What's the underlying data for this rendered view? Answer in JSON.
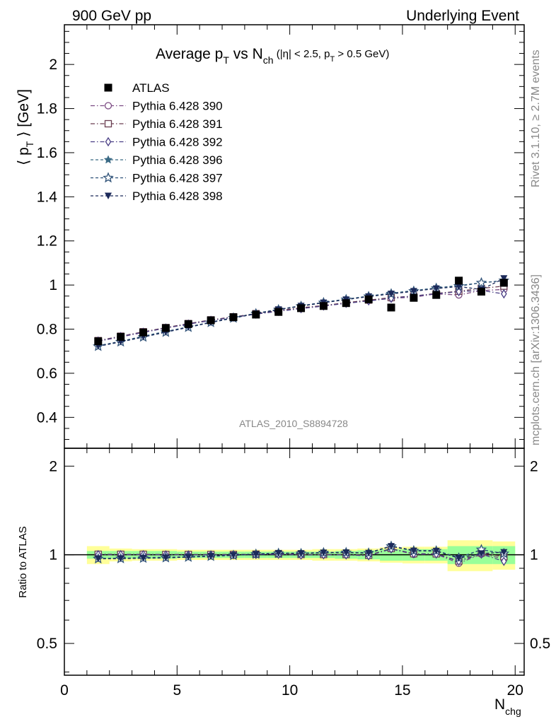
{
  "header": {
    "left": "900 GeV pp",
    "right": "Underlying Event"
  },
  "side_text": {
    "rivet": "Rivet 3.1.10, ≥ 2.7M events",
    "mcplots": "mcplots.cern.ch [arXiv:1306.3436]"
  },
  "chart_data": {
    "type": "scatter",
    "title": {
      "prefix": "Average p",
      "sub1": "T",
      "mid": " vs N",
      "sub2": "ch",
      "cut_a": " (|η| < 2.5, p",
      "cut_sub": "T",
      "cut_b": " > 0.5 GeV)"
    },
    "analysis_label": "ATLAS_2010_S8894728",
    "xlabel": {
      "main": "N",
      "sub": "chg"
    },
    "ylabel": {
      "left": "⟨ p",
      "sub": "T",
      "right": " ⟩ [GeV]"
    },
    "ratio_ylabel": "Ratio to ATLAS",
    "xlim": [
      0,
      20.4
    ],
    "ylim": [
      0.26,
      2.18
    ],
    "ratio_ylim": [
      0.39,
      2.3
    ],
    "x_ticks": [
      "0",
      "5",
      "10",
      "15",
      "20"
    ],
    "y_ticks": [
      "0.4",
      "0.6",
      "0.8",
      "1",
      "1.2",
      "1.4",
      "1.6",
      "1.8",
      "2"
    ],
    "ratio_ticks": [
      "0.5",
      "1",
      "2"
    ],
    "x": [
      1.5,
      2.5,
      3.5,
      4.5,
      5.5,
      6.5,
      7.5,
      8.5,
      9.5,
      10.5,
      11.5,
      12.5,
      13.5,
      14.5,
      15.5,
      16.5,
      17.5,
      18.5,
      19.5
    ],
    "data": {
      "name": "ATLAS",
      "values": [
        0.745,
        0.765,
        0.785,
        0.805,
        0.823,
        0.84,
        0.854,
        0.866,
        0.878,
        0.895,
        0.905,
        0.918,
        0.935,
        0.898,
        0.942,
        0.955,
        1.02,
        0.97,
        1.01
      ],
      "band_inner": [
        0.03,
        0.03,
        0.03,
        0.03,
        0.025,
        0.025,
        0.025,
        0.025,
        0.025,
        0.025,
        0.025,
        0.03,
        0.035,
        0.045,
        0.045,
        0.045,
        0.07,
        0.07,
        0.07
      ],
      "band_outer": [
        0.07,
        0.05,
        0.045,
        0.045,
        0.04,
        0.04,
        0.04,
        0.04,
        0.04,
        0.04,
        0.045,
        0.045,
        0.05,
        0.06,
        0.065,
        0.065,
        0.12,
        0.12,
        0.11
      ]
    },
    "series": [
      {
        "name": "Pythia 6.428 390",
        "color": "#7b4a82",
        "marker": "circle-open",
        "dash": "dashdot",
        "values": [
          0.745,
          0.765,
          0.785,
          0.805,
          0.823,
          0.84,
          0.854,
          0.868,
          0.883,
          0.895,
          0.905,
          0.918,
          0.93,
          0.94,
          0.945,
          0.96,
          0.955,
          0.975,
          0.98
        ]
      },
      {
        "name": "Pythia 6.428 391",
        "color": "#6a3d50",
        "marker": "square-open",
        "dash": "dashdot",
        "values": [
          0.748,
          0.768,
          0.788,
          0.807,
          0.825,
          0.842,
          0.856,
          0.87,
          0.884,
          0.897,
          0.907,
          0.92,
          0.932,
          0.943,
          0.95,
          0.962,
          0.972,
          0.985,
          0.995
        ]
      },
      {
        "name": "Pythia 6.428 392",
        "color": "#4a3f85",
        "marker": "diamond-open",
        "dash": "dashdot",
        "values": [
          0.746,
          0.766,
          0.786,
          0.805,
          0.823,
          0.84,
          0.854,
          0.868,
          0.881,
          0.893,
          0.905,
          0.917,
          0.928,
          0.94,
          0.95,
          0.96,
          0.97,
          0.975,
          0.96
        ]
      },
      {
        "name": "Pythia 6.428 396",
        "color": "#3a6a85",
        "marker": "star-filled",
        "dash": "dashed",
        "values": [
          0.725,
          0.745,
          0.768,
          0.79,
          0.81,
          0.832,
          0.852,
          0.872,
          0.89,
          0.906,
          0.922,
          0.936,
          0.95,
          0.963,
          0.975,
          0.987,
          0.998,
          1.01,
          1.02
        ]
      },
      {
        "name": "Pythia 6.428 397",
        "color": "#2f5278",
        "marker": "star-open",
        "dash": "dashed",
        "values": [
          0.722,
          0.742,
          0.764,
          0.786,
          0.808,
          0.83,
          0.85,
          0.87,
          0.888,
          0.904,
          0.92,
          0.934,
          0.948,
          0.96,
          0.972,
          0.985,
          0.995,
          1.01,
          1.02
        ]
      },
      {
        "name": "Pythia 6.428 398",
        "color": "#1c2a5a",
        "marker": "triangle-down",
        "dash": "dashed",
        "values": [
          0.723,
          0.743,
          0.765,
          0.787,
          0.809,
          0.831,
          0.851,
          0.87,
          0.889,
          0.905,
          0.92,
          0.934,
          0.948,
          0.96,
          0.972,
          0.984,
          0.993,
          0.98,
          1.03
        ]
      }
    ],
    "legend_position": "top-left"
  }
}
